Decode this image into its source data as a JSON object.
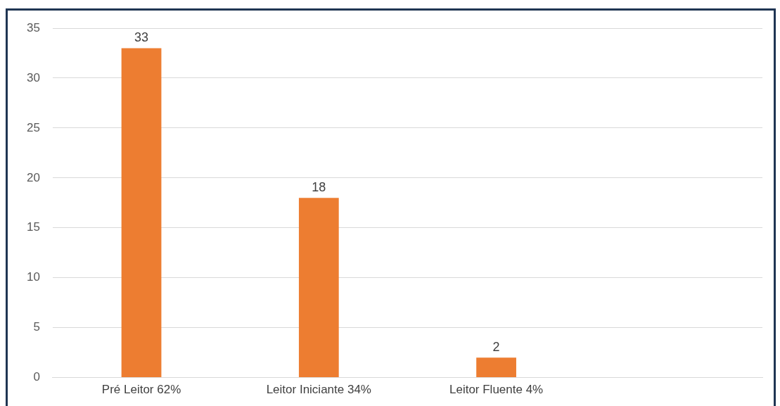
{
  "chart_data": {
    "type": "bar",
    "categories": [
      "Pré Leitor 62%",
      "Leitor Iniciante 34%",
      "Leitor Fluente 4%",
      null
    ],
    "values": [
      33,
      18,
      2,
      null
    ],
    "color": "#ed7d31",
    "ylim": [
      0,
      35
    ],
    "yticks": [
      0,
      5,
      10,
      15,
      20,
      25,
      30,
      35
    ],
    "grid": "y",
    "data_labels": true
  }
}
